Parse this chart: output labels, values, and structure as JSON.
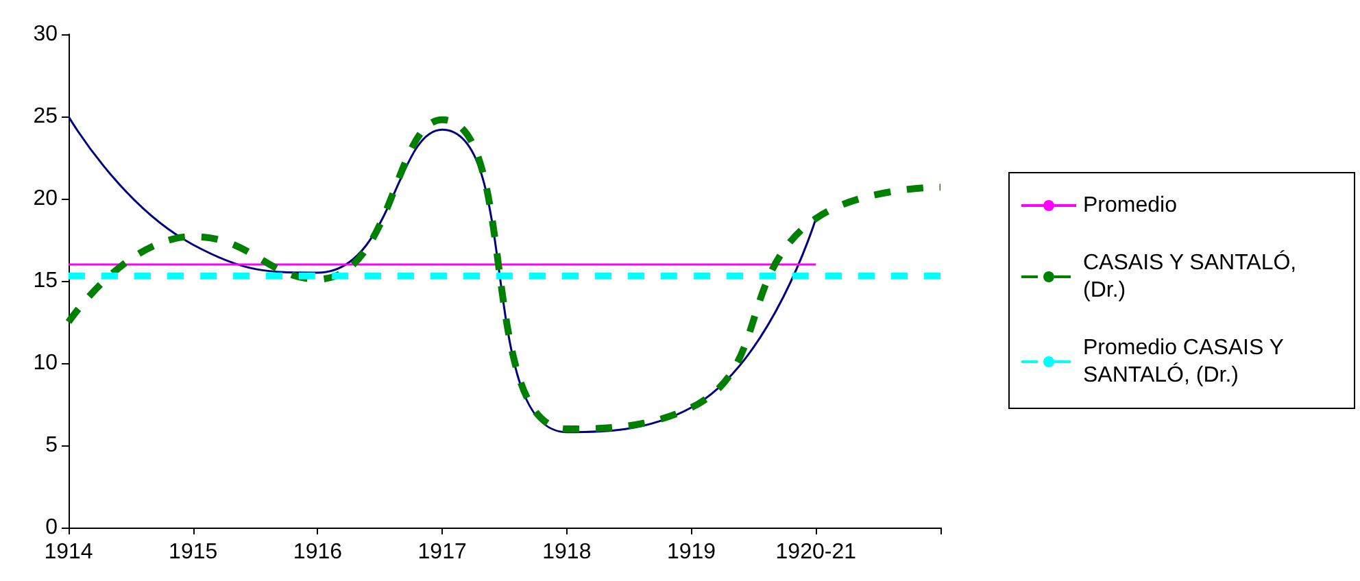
{
  "chart_data": {
    "type": "line",
    "categories": [
      "1914",
      "1915",
      "1916",
      "1917",
      "1918",
      "1919",
      "1920-21",
      null
    ],
    "series": [
      {
        "color": "#000080",
        "line_style": "solid",
        "values": [
          25,
          17.2,
          15.5,
          24.2,
          5.8,
          7.3,
          18.8,
          null
        ]
      },
      {
        "name": "Promedio",
        "color": "#ff00ff",
        "line_style": "solid",
        "values": [
          16,
          16,
          16,
          16,
          16,
          16,
          16,
          null
        ]
      },
      {
        "name": "CASAIS Y SANTALÓ, (Dr.)",
        "color": "#008000",
        "line_style": "dashed",
        "values": [
          12.5,
          17.7,
          15.1,
          24.8,
          6,
          7.3,
          18.8,
          20.7
        ]
      },
      {
        "name": "Promedio CASAIS Y SANTALÓ, (Dr.)",
        "color": "#00ffff",
        "line_style": "dashed",
        "values": [
          15.3,
          15.3,
          15.3,
          15.3,
          15.3,
          15.3,
          15.3,
          15.3
        ]
      }
    ],
    "ylim": [
      0,
      30
    ],
    "yticks": [
      0,
      5,
      10,
      15,
      20,
      25,
      30
    ],
    "grid": false,
    "legend": "right",
    "marker": "none"
  }
}
